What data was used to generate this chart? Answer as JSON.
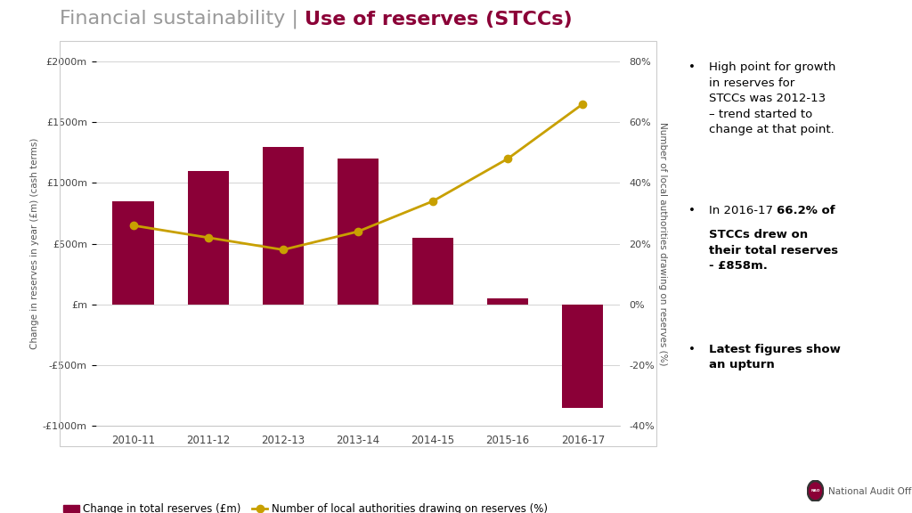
{
  "categories": [
    "2010-11",
    "2011-12",
    "2012-13",
    "2013-14",
    "2014-15",
    "2015-16",
    "2016-17"
  ],
  "bar_values": [
    850,
    1100,
    1300,
    1200,
    550,
    50,
    -850
  ],
  "line_values": [
    26,
    22,
    18,
    24,
    34,
    48,
    66
  ],
  "bar_color": "#8B0037",
  "line_color": "#C8A000",
  "title_gray": "Financial sustainability | ",
  "title_bold": "Use of reserves (STCCs)",
  "title_gray_color": "#999999",
  "title_bold_color": "#8B0037",
  "ylabel_left": "Change in reserves in year (£m) (cash terms)",
  "ylabel_right": "Number of local authorities drawing on reserves (%)",
  "legend_bar": "Change in total reserves (£m)",
  "legend_line": "Number of local authorities drawing on reserves (%)",
  "ylim_left": [
    -1000,
    2000
  ],
  "ylim_right": [
    -40,
    80
  ],
  "yticks_left": [
    -1000,
    -500,
    0,
    500,
    1000,
    1500,
    2000
  ],
  "ytick_labels_left": [
    "-£1000m",
    "-£500m",
    "£m",
    "£500m",
    "£1000m",
    "£1500m",
    "£2000m"
  ],
  "yticks_right": [
    -40,
    -20,
    0,
    20,
    40,
    60,
    80
  ],
  "ytick_labels_right": [
    "-40%",
    "-20%",
    "0%",
    "20%",
    "40%",
    "60%",
    "80%"
  ],
  "background_color": "#FFFFFF",
  "bullet1_text": "High point for growth\nin reserves for\nSTCCs was 2012-13\n– trend started to\nchange at that point.",
  "bullet2_prefix": "In 2016-17 ",
  "bullet2_bold": "66.2% of\nSTCCs drew on\ntheir total reserves\n- £858m.",
  "bullet3_bold": "Latest figures show\nan upturn",
  "nao_text": "National Audit Office"
}
